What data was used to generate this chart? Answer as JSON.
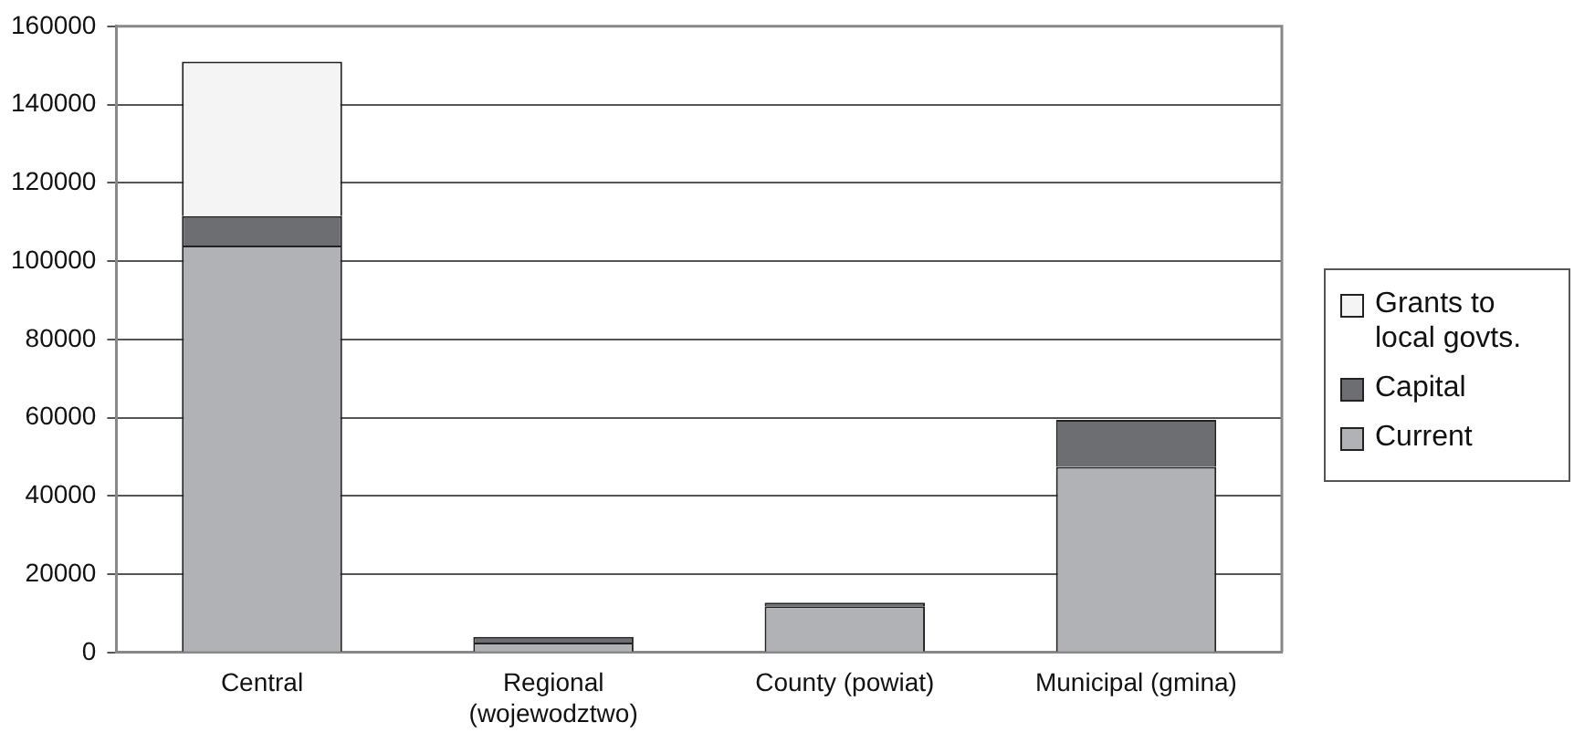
{
  "chart_data": {
    "type": "bar",
    "stacked": true,
    "categories": [
      "Central",
      "Regional (wojewodztwo)",
      "County (powiat)",
      "Municipal (gmina)"
    ],
    "series": [
      {
        "name": "Current",
        "color": "#b1b2b6",
        "values": [
          104000,
          2500,
          11800,
          47400
        ]
      },
      {
        "name": "Capital",
        "color": "#6d6e72",
        "values": [
          7500,
          1500,
          900,
          12000
        ]
      },
      {
        "name": "Grants to local govts.",
        "color": "#f4f4f4",
        "values": [
          39500,
          null,
          null,
          null
        ]
      }
    ],
    "ylim": [
      0,
      160000
    ],
    "yticks": [
      0,
      20000,
      40000,
      60000,
      80000,
      100000,
      120000,
      140000,
      160000
    ],
    "grid": "y",
    "legend": "right"
  }
}
